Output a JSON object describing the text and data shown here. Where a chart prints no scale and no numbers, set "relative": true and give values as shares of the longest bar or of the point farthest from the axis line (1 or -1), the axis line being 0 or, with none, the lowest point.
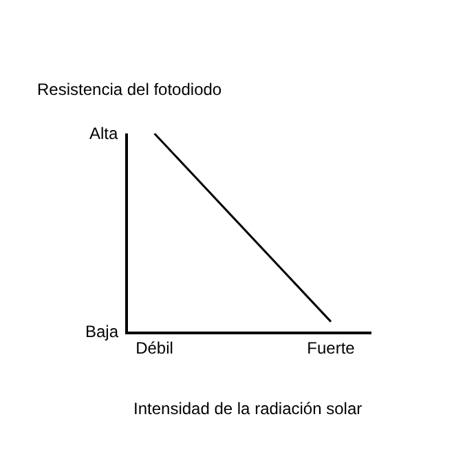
{
  "chart_data": {
    "type": "line",
    "relative": true,
    "ylabel": "Resistencia del fotodiodo",
    "xlabel": "Intensidad de la radiación solar",
    "categories": [
      "Débil",
      "Fuerte"
    ],
    "values": [
      1,
      0.05
    ],
    "color": "#000000",
    "annotations": [
      "Alta",
      "Baja"
    ],
    "marker": "none",
    "line_style": "solid"
  }
}
